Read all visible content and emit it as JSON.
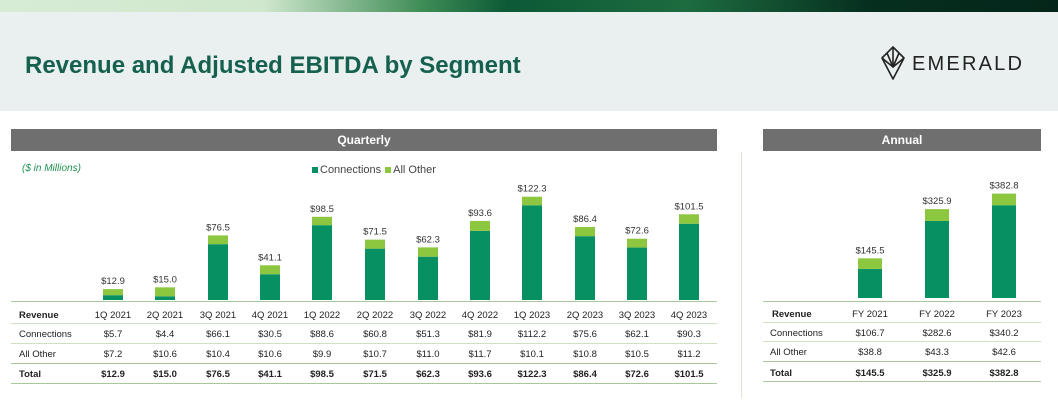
{
  "title": "Revenue and Adjusted EBITDA by Segment",
  "logo": {
    "text": "EMERALD",
    "icon": "emerald-gem-icon"
  },
  "colors": {
    "connections": "#079062",
    "all_other": "#8dc63f",
    "title": "#15604f",
    "header": "#6f6f6f"
  },
  "quarterly": {
    "header": "Quarterly",
    "units_note": "($ in Millions)",
    "legend": [
      "Connections",
      "All Other"
    ],
    "table": {
      "header_label": "Revenue",
      "rows": [
        {
          "label": "Connections",
          "values": [
            "$5.7",
            "$4.4",
            "$66.1",
            "$30.5",
            "$88.6",
            "$60.8",
            "$51.3",
            "$81.9",
            "$112.2",
            "$75.6",
            "$62.1",
            "$90.3"
          ]
        },
        {
          "label": "All Other",
          "values": [
            "$7.2",
            "$10.6",
            "$10.4",
            "$10.6",
            "$9.9",
            "$10.7",
            "$11.0",
            "$11.7",
            "$10.1",
            "$10.8",
            "$10.5",
            "$11.2"
          ]
        },
        {
          "label": "Total",
          "values": [
            "$12.9",
            "$15.0",
            "$76.5",
            "$41.1",
            "$98.5",
            "$71.5",
            "$62.3",
            "$93.6",
            "$122.3",
            "$86.4",
            "$72.6",
            "$101.5"
          ]
        }
      ]
    }
  },
  "annual": {
    "header": "Annual",
    "table": {
      "header_label": "Revenue",
      "rows": [
        {
          "label": "Connections",
          "values": [
            "$106.7",
            "$282.6",
            "$340.2"
          ]
        },
        {
          "label": "All Other",
          "values": [
            "$38.8",
            "$43.3",
            "$42.6"
          ]
        },
        {
          "label": "Total",
          "values": [
            "$145.5",
            "$325.9",
            "$382.8"
          ]
        }
      ]
    }
  },
  "chart_data": [
    {
      "type": "bar",
      "stacked": true,
      "title": "Quarterly",
      "categories": [
        "1Q 2021",
        "2Q 2021",
        "3Q 2021",
        "4Q 2021",
        "1Q 2022",
        "2Q 2022",
        "3Q 2022",
        "4Q 2022",
        "1Q 2023",
        "2Q 2023",
        "3Q 2023",
        "4Q 2023"
      ],
      "series": [
        {
          "name": "Connections",
          "values": [
            5.7,
            4.4,
            66.1,
            30.5,
            88.6,
            60.8,
            51.3,
            81.9,
            112.2,
            75.6,
            62.1,
            90.3
          ]
        },
        {
          "name": "All Other",
          "values": [
            7.2,
            10.6,
            10.4,
            10.6,
            9.9,
            10.7,
            11.0,
            11.7,
            10.1,
            10.8,
            10.5,
            11.2
          ]
        }
      ],
      "totals": [
        "$12.9",
        "$15.0",
        "$76.5",
        "$41.1",
        "$98.5",
        "$71.5",
        "$62.3",
        "$93.6",
        "$122.3",
        "$86.4",
        "$72.6",
        "$101.5"
      ],
      "legend_position": "top",
      "grid": false,
      "ylim": [
        0,
        130
      ]
    },
    {
      "type": "bar",
      "stacked": true,
      "title": "Annual",
      "categories": [
        "FY 2021",
        "FY 2022",
        "FY 2023"
      ],
      "series": [
        {
          "name": "Connections",
          "values": [
            106.7,
            282.6,
            340.2
          ]
        },
        {
          "name": "All Other",
          "values": [
            38.8,
            43.3,
            42.6
          ]
        }
      ],
      "totals": [
        "$145.5",
        "$325.9",
        "$382.8"
      ],
      "grid": false,
      "ylim": [
        0,
        400
      ]
    }
  ]
}
